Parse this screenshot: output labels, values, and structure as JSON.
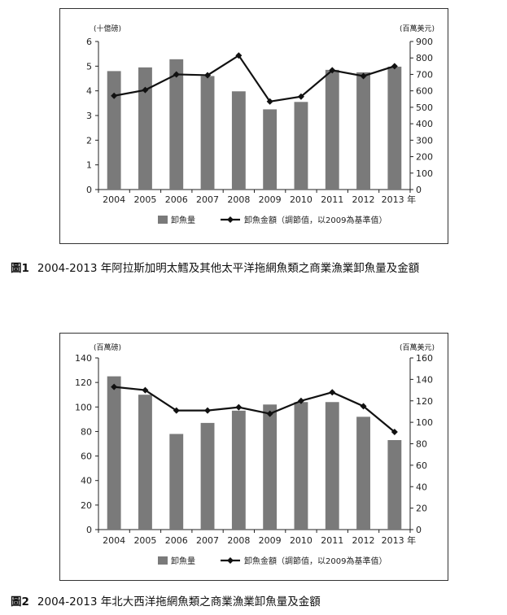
{
  "chart_data": [
    {
      "type": "bar",
      "categories": [
        "2004",
        "2005",
        "2006",
        "2007",
        "2008",
        "2009",
        "2010",
        "2011",
        "2012",
        "2013 年"
      ],
      "left_unit": "(十億磅)",
      "right_unit": "(百萬美元)",
      "ylim_left": [
        0,
        6
      ],
      "yticks_left": [
        0,
        1,
        2,
        3,
        4,
        5,
        6
      ],
      "ylim_right": [
        0,
        900
      ],
      "yticks_right": [
        0,
        100,
        200,
        300,
        400,
        500,
        600,
        700,
        800,
        900
      ],
      "series": [
        {
          "name": "卸魚量",
          "kind": "bar",
          "axis": "left",
          "color": "#7a7a7a",
          "values": [
            4.8,
            4.95,
            5.28,
            4.6,
            3.98,
            3.25,
            3.55,
            4.85,
            4.75,
            4.98
          ]
        },
        {
          "name": "卸魚金額（調節值，以2009為基準值）",
          "kind": "line",
          "axis": "right",
          "color": "#111111",
          "values": [
            570,
            605,
            700,
            695,
            815,
            535,
            565,
            725,
            690,
            750
          ]
        }
      ],
      "caption_num": "圖1",
      "caption": "2004-2013 年阿拉斯加明太鱈及其他太平洋拖網魚類之商業漁業卸魚量及金額"
    },
    {
      "type": "bar",
      "categories": [
        "2004",
        "2005",
        "2006",
        "2007",
        "2008",
        "2009",
        "2010",
        "2011",
        "2012",
        "2013 年"
      ],
      "left_unit": "(百萬磅)",
      "right_unit": "(百萬美元)",
      "ylim_left": [
        0,
        140
      ],
      "yticks_left": [
        0,
        20,
        40,
        60,
        80,
        100,
        120,
        140
      ],
      "ylim_right": [
        0,
        160
      ],
      "yticks_right": [
        0,
        20,
        40,
        60,
        80,
        100,
        120,
        140,
        160
      ],
      "series": [
        {
          "name": "卸魚量",
          "kind": "bar",
          "axis": "left",
          "color": "#7a7a7a",
          "values": [
            125,
            110,
            78,
            87,
            97,
            102,
            104,
            104,
            92,
            73
          ]
        },
        {
          "name": "卸魚金額（調節值，以2009為基準值）",
          "kind": "line",
          "axis": "right",
          "color": "#111111",
          "values": [
            133,
            130,
            111,
            111,
            114,
            108,
            120,
            128,
            115,
            91
          ]
        }
      ],
      "caption_num": "圖2",
      "caption": "2004-2013 年北大西洋拖網魚類之商業漁業卸魚量及金額"
    }
  ]
}
